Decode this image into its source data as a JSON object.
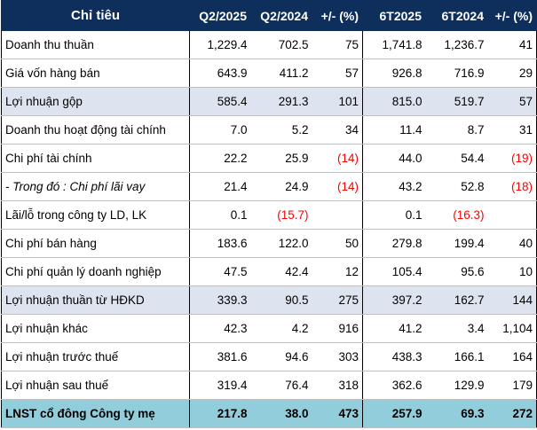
{
  "header": {
    "label": "Chỉ tiêu",
    "q2_2025": "Q2/2025",
    "q2_2024": "Q2/2024",
    "q_change": "+/- (%)",
    "h1_2025": "6T2025",
    "h1_2024": "6T2024",
    "h_change": "+/- (%)"
  },
  "rows": [
    {
      "label": "Doanh thu thuần",
      "q2_2025": "1,229.4",
      "q2_2024": "702.5",
      "q_change": "75",
      "h1_2025": "1,741.8",
      "h1_2024": "1,236.7",
      "h_change": "41"
    },
    {
      "label": "Giá vốn hàng bán",
      "q2_2025": "643.9",
      "q2_2024": "411.2",
      "q_change": "57",
      "h1_2025": "926.8",
      "h1_2024": "716.9",
      "h_change": "29"
    },
    {
      "label": "Lợi nhuận gộp",
      "q2_2025": "585.4",
      "q2_2024": "291.3",
      "q_change": "101",
      "h1_2025": "815.0",
      "h1_2024": "519.7",
      "h_change": "57"
    },
    {
      "label": "Doanh thu hoạt động tài chính",
      "q2_2025": "7.0",
      "q2_2024": "5.2",
      "q_change": "34",
      "h1_2025": "11.4",
      "h1_2024": "8.7",
      "h_change": "31"
    },
    {
      "label": "Chi phí tài chính",
      "q2_2025": "22.2",
      "q2_2024": "25.9",
      "q_change": "(14)",
      "h1_2025": "44.0",
      "h1_2024": "54.4",
      "h_change": "(19)"
    },
    {
      "label": "- Trong đó : Chi phí lãi vay",
      "q2_2025": "21.4",
      "q2_2024": "24.9",
      "q_change": "(14)",
      "h1_2025": "43.2",
      "h1_2024": "52.8",
      "h_change": "(18)"
    },
    {
      "label": "Lãi/lỗ trong công ty LD, LK",
      "q2_2025": "0.1",
      "q2_2024": "(15.7)",
      "q_change": "",
      "h1_2025": "0.1",
      "h1_2024": "(16.3)",
      "h_change": ""
    },
    {
      "label": "Chi phí bán hàng",
      "q2_2025": "183.6",
      "q2_2024": "122.0",
      "q_change": "50",
      "h1_2025": "279.8",
      "h1_2024": "199.4",
      "h_change": "40"
    },
    {
      "label": "Chi phí quản lý doanh nghiệp",
      "q2_2025": "47.5",
      "q2_2024": "42.4",
      "q_change": "12",
      "h1_2025": "105.4",
      "h1_2024": "95.6",
      "h_change": "10"
    },
    {
      "label": "Lợi nhuận thuần từ HĐKD",
      "q2_2025": "339.3",
      "q2_2024": "90.5",
      "q_change": "275",
      "h1_2025": "397.2",
      "h1_2024": "162.7",
      "h_change": "144"
    },
    {
      "label": "Lợi nhuận khác",
      "q2_2025": "42.3",
      "q2_2024": "4.2",
      "q_change": "916",
      "h1_2025": "41.2",
      "h1_2024": "3.4",
      "h_change": "1,104"
    },
    {
      "label": "Lợi nhuận trước thuế",
      "q2_2025": "381.6",
      "q2_2024": "94.6",
      "q_change": "303",
      "h1_2025": "438.3",
      "h1_2024": "166.1",
      "h_change": "164"
    },
    {
      "label": "Lợi nhuận sau thuế",
      "q2_2025": "319.4",
      "q2_2024": "76.4",
      "q_change": "318",
      "h1_2025": "362.6",
      "h1_2024": "129.9",
      "h_change": "179"
    },
    {
      "label": "LNST cổ đông Công ty mẹ",
      "q2_2025": "217.8",
      "q2_2024": "38.0",
      "q_change": "473",
      "h1_2025": "257.9",
      "h1_2024": "69.3",
      "h_change": "272"
    }
  ],
  "colors": {
    "header_bg": "#0e2e5c",
    "highlight_row_bg": "#dde4ef",
    "total_row_bg": "#92cddc",
    "negative_text": "#ff0000"
  }
}
